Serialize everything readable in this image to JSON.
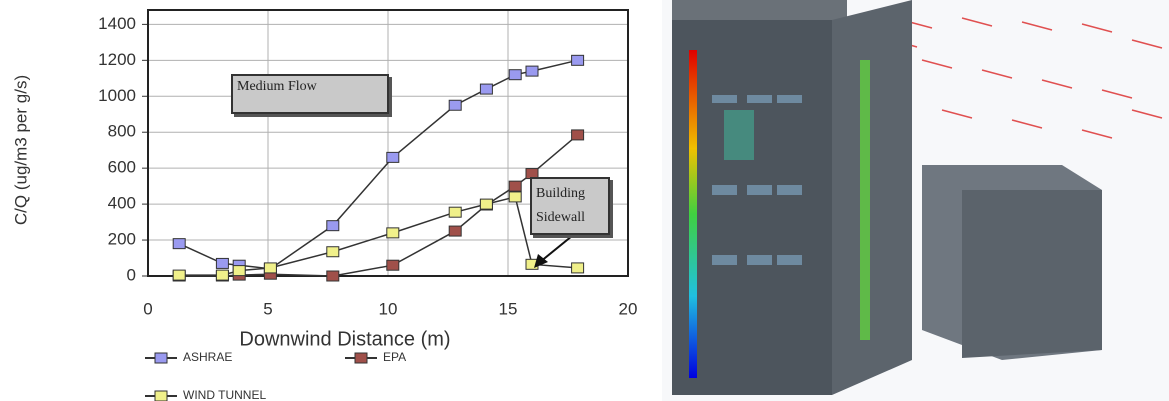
{
  "chart_data": {
    "type": "line",
    "y_label": "C/Q (ug/m3 per g/s)",
    "x_label": "Downwind Distance (m)",
    "xlim": [
      0,
      20
    ],
    "xticks": [
      0,
      5,
      10,
      15,
      20
    ],
    "ylim": [
      0,
      1480
    ],
    "yticks": [
      0,
      200,
      400,
      600,
      800,
      1000,
      1200,
      1400
    ],
    "grid": true,
    "series": [
      {
        "name": "ASHRAE",
        "color": "#9a9af0",
        "x": [
          1.3,
          3.1,
          3.8,
          5.1,
          7.7,
          10.2,
          12.8,
          14.1,
          15.3,
          16.0,
          17.9
        ],
        "values": [
          180,
          70,
          60,
          40,
          280,
          660,
          950,
          1040,
          1120,
          1140,
          1200
        ]
      },
      {
        "name": "EPA",
        "color": "#a0504a",
        "x": [
          1.3,
          3.1,
          3.8,
          5.1,
          7.7,
          10.2,
          12.8,
          14.1,
          15.3,
          16.0,
          17.9
        ],
        "values": [
          0,
          0,
          5,
          10,
          0,
          60,
          250,
          395,
          500,
          570,
          785
        ]
      },
      {
        "name": "WIND TUNNEL",
        "color": "#f0f08a",
        "x": [
          1.3,
          3.1,
          3.8,
          5.1,
          7.7,
          10.2,
          12.8,
          14.1,
          15.3,
          16.0,
          17.9
        ],
        "values": [
          5,
          5,
          30,
          45,
          135,
          240,
          355,
          400,
          440,
          65,
          45
        ]
      }
    ],
    "annotations": [
      "Medium Flow",
      "Building Sidewall"
    ]
  }
}
